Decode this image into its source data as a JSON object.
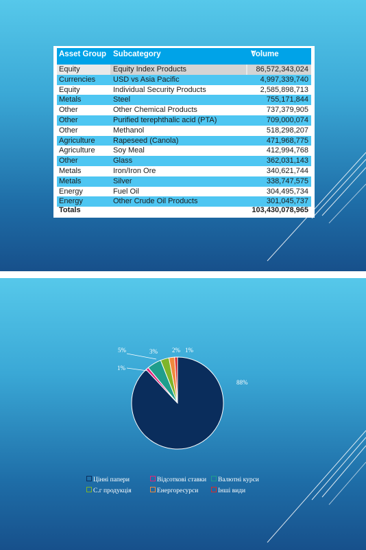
{
  "table": {
    "headers": {
      "asset_group": "Asset Group",
      "subcategory": "Subcategory",
      "volume": "Volume"
    },
    "rows": [
      {
        "asset_group": "Equity",
        "subcategory": "Equity Index Products",
        "volume": "86,572,343,024"
      },
      {
        "asset_group": "Currencies",
        "subcategory": "USD vs Asia Pacific",
        "volume": "4,997,339,740"
      },
      {
        "asset_group": "Equity",
        "subcategory": "Individual Security Products",
        "volume": "2,585,898,713"
      },
      {
        "asset_group": "Metals",
        "subcategory": "Steel",
        "volume": "755,171,844"
      },
      {
        "asset_group": "Other",
        "subcategory": "Other Chemical Products",
        "volume": "737,379,905"
      },
      {
        "asset_group": "Other",
        "subcategory": "Purified terephthalic acid (PTA)",
        "volume": "709,000,074"
      },
      {
        "asset_group": "Other",
        "subcategory": "Methanol",
        "volume": "518,298,207"
      },
      {
        "asset_group": "Agriculture",
        "subcategory": "Rapeseed (Canola)",
        "volume": "471,968,775"
      },
      {
        "asset_group": "Agriculture",
        "subcategory": "Soy Meal",
        "volume": "412,994,768"
      },
      {
        "asset_group": "Other",
        "subcategory": "Glass",
        "volume": "362,031,143"
      },
      {
        "asset_group": "Metals",
        "subcategory": "Iron/Iron Ore",
        "volume": "340,621,744"
      },
      {
        "asset_group": "Metals",
        "subcategory": "Silver",
        "volume": "338,747,575"
      },
      {
        "asset_group": "Energy",
        "subcategory": "Fuel Oil",
        "volume": "304,495,734"
      },
      {
        "asset_group": "Energy",
        "subcategory": "Other Crude Oil Products",
        "volume": "301,045,737"
      }
    ],
    "totals": {
      "label": "Totals",
      "volume": "103,430,078,965"
    },
    "colors": {
      "header": "#00a3e8",
      "alt_row": "#4ec6f2",
      "selected": "#d4d4d4"
    }
  },
  "chart_data": {
    "type": "pie",
    "categories": [
      "Цінні папери",
      "Відсоткові ставки",
      "Валютні курси",
      "С.г продукція",
      "Енергоресурси",
      "Інші види"
    ],
    "values": [
      88,
      1,
      5,
      3,
      2,
      1
    ],
    "labels": [
      "88%",
      "1%",
      "5%",
      "3%",
      "2%",
      "1%"
    ],
    "colors": [
      "#0a2d5c",
      "#e0267a",
      "#1f9e8c",
      "#7fb52a",
      "#f08a3c",
      "#d92b2b"
    ],
    "legend_position": "bottom"
  }
}
